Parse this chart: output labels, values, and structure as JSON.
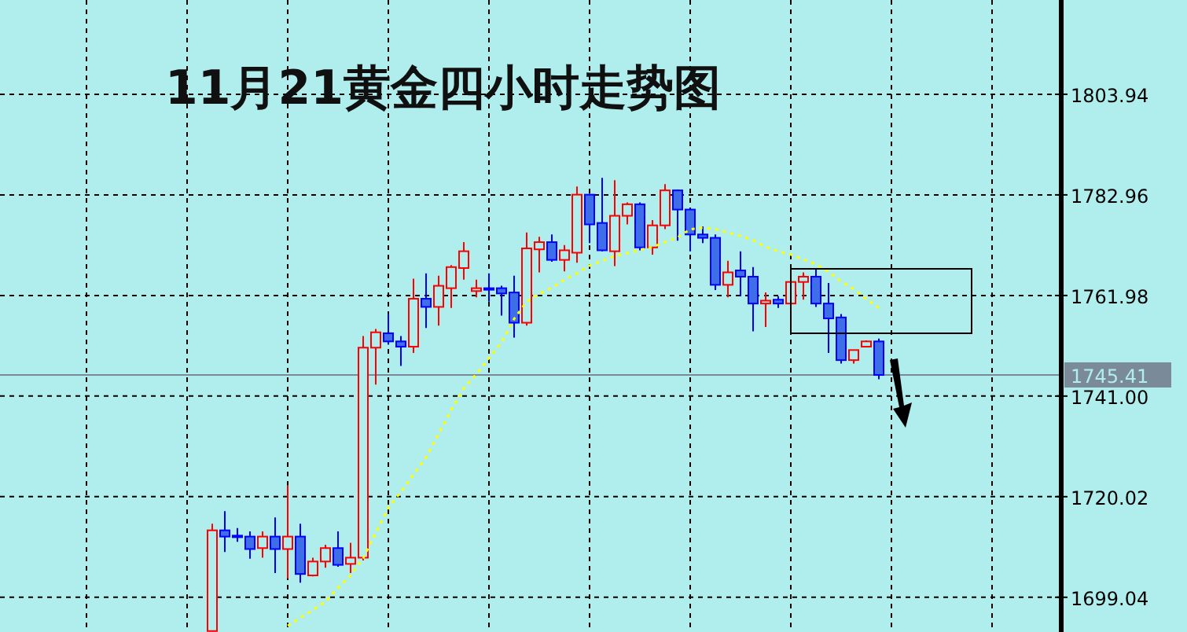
{
  "chart_data": {
    "type": "candlestick",
    "title": "11月21黄金四小时走势图",
    "categories": [
      null,
      null,
      null,
      null,
      null,
      null,
      null,
      null,
      null,
      null,
      null,
      null,
      null,
      null,
      null,
      null,
      null,
      null,
      null,
      null,
      null,
      null,
      null,
      null,
      null,
      null,
      null,
      null,
      null,
      null,
      null,
      null,
      null,
      null,
      null,
      null,
      null,
      null,
      null,
      null,
      null,
      null,
      null,
      null,
      null,
      null,
      null,
      null,
      null,
      null,
      null,
      null,
      null,
      null
    ],
    "ohlc": [
      [
        1692.0,
        1714.4,
        1692.0,
        1713.0
      ],
      [
        1713.0,
        1717.0,
        1708.5,
        1711.7
      ],
      [
        1711.9,
        1713.5,
        1710.6,
        1711.9
      ],
      [
        1711.7,
        1712.8,
        1707.1,
        1709.1
      ],
      [
        1709.3,
        1712.8,
        1707.3,
        1711.7
      ],
      [
        1711.7,
        1715.7,
        1704.1,
        1709.1
      ],
      [
        1709.1,
        1722.4,
        1703.0,
        1711.7
      ],
      [
        1711.7,
        1714.4,
        1702.1,
        1703.9
      ],
      [
        1703.6,
        1707.3,
        1703.4,
        1706.5
      ],
      [
        1706.5,
        1710.0,
        1705.2,
        1709.3
      ],
      [
        1709.3,
        1712.8,
        1705.4,
        1705.8
      ],
      [
        1706.0,
        1710.4,
        1704.1,
        1707.3
      ],
      [
        1707.3,
        1753.5,
        1706.7,
        1751.1
      ],
      [
        1751.1,
        1755.0,
        1743.4,
        1754.3
      ],
      [
        1754.1,
        1758.1,
        1751.7,
        1752.4
      ],
      [
        1752.4,
        1753.5,
        1747.3,
        1751.3
      ],
      [
        1751.3,
        1765.5,
        1750.0,
        1761.3
      ],
      [
        1761.3,
        1766.6,
        1755.2,
        1759.6
      ],
      [
        1759.6,
        1766.1,
        1755.7,
        1764.0
      ],
      [
        1763.5,
        1768.3,
        1759.4,
        1767.9
      ],
      [
        1767.7,
        1773.1,
        1765.3,
        1771.2
      ],
      [
        1762.9,
        1765.3,
        1761.6,
        1763.5
      ],
      [
        1763.5,
        1766.6,
        1760.7,
        1763.5
      ],
      [
        1763.5,
        1764.0,
        1757.8,
        1762.4
      ],
      [
        1762.6,
        1766.1,
        1753.2,
        1756.3
      ],
      [
        1756.3,
        1775.1,
        1755.7,
        1771.8
      ],
      [
        1771.6,
        1774.2,
        1766.8,
        1773.1
      ],
      [
        1773.1,
        1774.7,
        1769.0,
        1769.4
      ],
      [
        1769.4,
        1772.5,
        1767.0,
        1771.4
      ],
      [
        1770.9,
        1784.7,
        1768.8,
        1783.0
      ],
      [
        1783.0,
        1783.2,
        1772.9,
        1776.8
      ],
      [
        1777.1,
        1786.5,
        1771.2,
        1771.4
      ],
      [
        1771.2,
        1786.0,
        1768.1,
        1778.6
      ],
      [
        1778.6,
        1781.4,
        1776.8,
        1781.0
      ],
      [
        1781.0,
        1781.4,
        1771.4,
        1772.0
      ],
      [
        1772.0,
        1777.7,
        1770.5,
        1776.6
      ],
      [
        1776.6,
        1785.2,
        1775.8,
        1783.9
      ],
      [
        1783.9,
        1784.0,
        1773.4,
        1779.9
      ],
      [
        1779.9,
        1780.1,
        1771.2,
        1774.7
      ],
      [
        1774.7,
        1776.4,
        1772.9,
        1774.0
      ],
      [
        1774.0,
        1774.7,
        1763.1,
        1764.2
      ],
      [
        1764.2,
        1769.2,
        1761.6,
        1766.8
      ],
      [
        1767.2,
        1771.2,
        1761.8,
        1765.9
      ],
      [
        1765.9,
        1767.9,
        1754.5,
        1760.3
      ],
      [
        1760.3,
        1762.6,
        1755.4,
        1760.9
      ],
      [
        1761.1,
        1761.8,
        1759.4,
        1760.3
      ],
      [
        1760.3,
        1764.8,
        1760.3,
        1764.8
      ],
      [
        1764.8,
        1766.8,
        1761.1,
        1765.9
      ],
      [
        1765.9,
        1767.5,
        1759.6,
        1760.3
      ],
      [
        1760.3,
        1764.6,
        1750.0,
        1757.2
      ],
      [
        1757.4,
        1758.1,
        1747.8,
        1748.5
      ],
      [
        1748.5,
        1750.6,
        1747.8,
        1750.6
      ],
      [
        1751.3,
        1752.6,
        1751.3,
        1752.4
      ],
      [
        1752.4,
        1753.0,
        1744.5,
        1745.4
      ]
    ],
    "series": [
      {
        "type": "line",
        "color": "#ffff00",
        "line_style": "dotted",
        "values": [
          null,
          null,
          null,
          null,
          null,
          null,
          1693.1,
          1694.8,
          1696.4,
          1698.1,
          1701.0,
          1703.6,
          1707.2,
          1712.5,
          1717.7,
          1721.0,
          1724.6,
          1728.2,
          1733.1,
          1738.1,
          1742.6,
          1745.6,
          1748.9,
          1752.2,
          1757.1,
          1760.7,
          1762.3,
          1763.6,
          1765.3,
          1766.6,
          1768.2,
          1769.2,
          1770.2,
          1770.8,
          1771.5,
          1772.1,
          1773.1,
          1774.1,
          1775.8,
          1776.1,
          1775.8,
          1775.1,
          1774.4,
          1773.5,
          1772.1,
          1771.2,
          1770.5,
          1769.5,
          1768.5,
          1766.9,
          1764.9,
          1763.3,
          1761.3,
          1759.4
        ]
      }
    ],
    "ylim": [
      1691.8,
      1823.6
    ],
    "yticks": [
      1699.04,
      1720.02,
      {
        "value": 1741.0,
        "label": "1741.00"
      },
      1761.98,
      1782.96,
      1803.94
    ],
    "ref_lines": [
      {
        "axis": "y",
        "value": 1745.41,
        "label": "1745.41",
        "color": "#7a8a99"
      }
    ],
    "grid": true,
    "tick_labels": "y"
  }
}
